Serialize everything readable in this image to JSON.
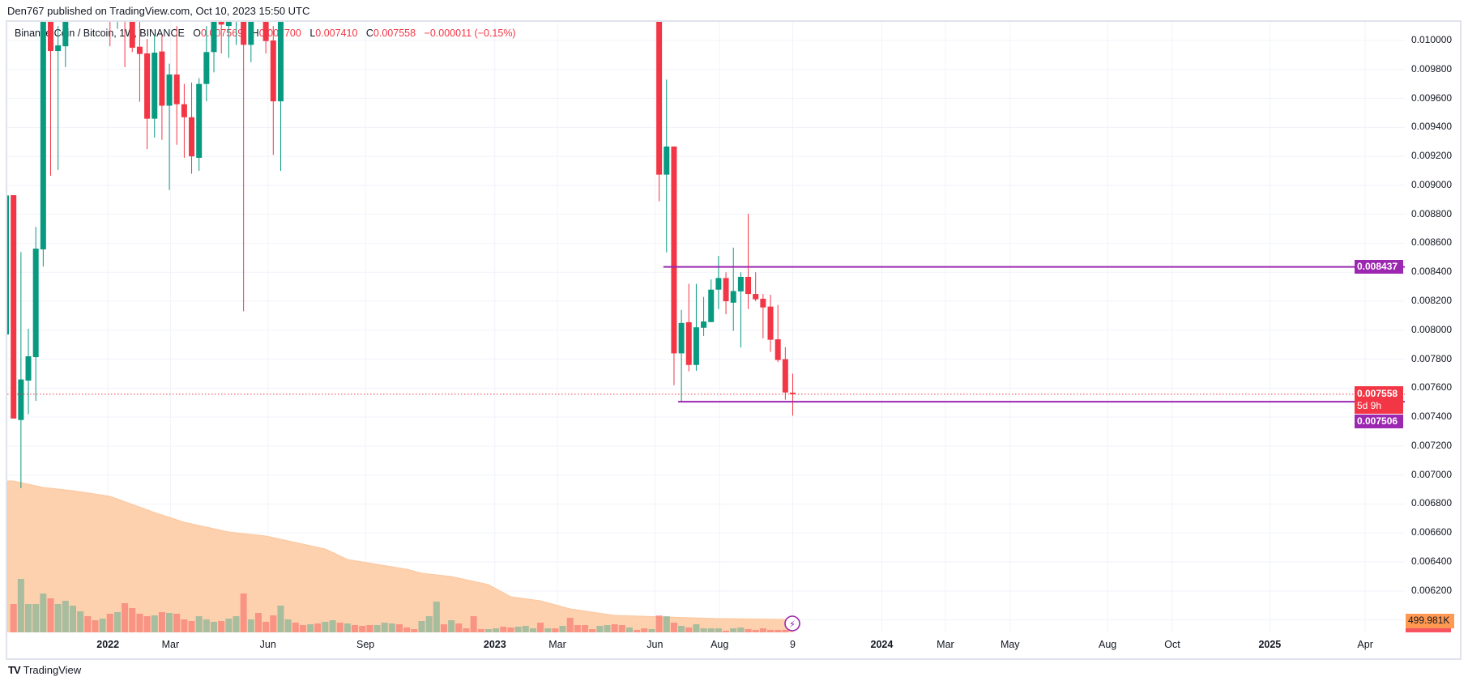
{
  "publisher_line": "Den767 published on TradingView.com, Oct 10, 2023 15:50 UTC",
  "legend": {
    "symbol": "Binance Coin / Bitcoin, 1W, BINANCE",
    "open_label": "O",
    "open": "0.007569",
    "high_label": "H",
    "high": "0.007700",
    "low_label": "L",
    "low": "0.007410",
    "close_label": "C",
    "close": "0.007558",
    "change": "−0.000011 (−0.15%)"
  },
  "colors": {
    "up": "#089981",
    "down": "#f23645",
    "level_line": "#9c27b0",
    "volume_ma": "#ff9850",
    "grid": "#f0f3fa"
  },
  "price_axis": {
    "ticks": [
      "0.010000",
      "0.009800",
      "0.009600",
      "0.009400",
      "0.009200",
      "0.009000",
      "0.008800",
      "0.008600",
      "0.008400",
      "0.008200",
      "0.008000",
      "0.007800",
      "0.007600",
      "0.007400",
      "0.007200",
      "0.007000",
      "0.006800",
      "0.006600",
      "0.006400",
      "0.006200"
    ]
  },
  "time_axis": {
    "labels": [
      {
        "t": "2022-01-01",
        "text": "2022",
        "year": true
      },
      {
        "t": "2022-03-01",
        "text": "Mar"
      },
      {
        "t": "2022-06-01",
        "text": "Jun"
      },
      {
        "t": "2022-09-01",
        "text": "Sep"
      },
      {
        "t": "2023-01-01",
        "text": "2023",
        "year": true
      },
      {
        "t": "2023-03-01",
        "text": "Mar"
      },
      {
        "t": "2023-06-01",
        "text": "Jun"
      },
      {
        "t": "2023-08-01",
        "text": "Aug"
      },
      {
        "t": "2023-10-09",
        "text": "9"
      },
      {
        "t": "2024-01-01",
        "text": "2024",
        "year": true
      },
      {
        "t": "2024-03-01",
        "text": "Mar"
      },
      {
        "t": "2024-05-01",
        "text": "May"
      },
      {
        "t": "2024-08-01",
        "text": "Aug"
      },
      {
        "t": "2024-10-01",
        "text": "Oct"
      },
      {
        "t": "2025-01-01",
        "text": "2025",
        "year": true
      },
      {
        "t": "2025-04-01",
        "text": "Apr"
      }
    ]
  },
  "levels": [
    {
      "price": 0.008437,
      "label": "0.008437",
      "from": "2023-06-12"
    },
    {
      "price": 0.007506,
      "label": "0.007506",
      "from": "2023-06-26"
    }
  ],
  "current_price": {
    "price": 0.007558,
    "label": "0.007558",
    "countdown": "5d 9h"
  },
  "volume_ma_label": "499.981K",
  "chart_data": {
    "type": "candlestick",
    "symbol": "Binance Coin / Bitcoin",
    "interval": "1W",
    "ylim": [
      0.006,
      0.0101
    ],
    "candles": [
      {
        "t": "2021-09-27",
        "o": 0.00797,
        "h": 0.00893,
        "l": 0.00797,
        "c": 0.00893
      },
      {
        "t": "2021-10-04",
        "o": 0.008932,
        "h": 0.008932,
        "l": 0.00739,
        "c": 0.00739
      },
      {
        "t": "2021-10-11",
        "o": 0.00738,
        "h": 0.00854,
        "l": 0.00691,
        "c": 0.00766
      },
      {
        "t": "2021-10-18",
        "o": 0.007652,
        "h": 0.00801,
        "l": 0.00742,
        "c": 0.00782
      },
      {
        "t": "2021-10-25",
        "o": 0.007814,
        "h": 0.008714,
        "l": 0.007512,
        "c": 0.008563
      },
      {
        "t": "2021-11-01",
        "o": 0.008558,
        "h": 0.011,
        "l": 0.00844,
        "c": 0.0105
      },
      {
        "t": "2021-11-08",
        "o": 0.0105,
        "h": 0.011,
        "l": 0.009066,
        "c": 0.009927
      },
      {
        "t": "2021-11-15",
        "o": 0.009927,
        "h": 0.0101,
        "l": 0.009106,
        "c": 0.009966
      },
      {
        "t": "2021-11-22",
        "o": 0.00996,
        "h": 0.0106,
        "l": 0.009816,
        "c": 0.0104
      },
      {
        "t": "2022-01-03",
        "o": 0.0106,
        "h": 0.0108,
        "l": 0.00996,
        "c": 0.0102
      },
      {
        "t": "2022-01-10",
        "o": 0.0102,
        "h": 0.0106,
        "l": 0.01008,
        "c": 0.0104
      },
      {
        "t": "2022-01-17",
        "o": 0.0105,
        "h": 0.0107,
        "l": 0.009816,
        "c": 0.0102
      },
      {
        "t": "2022-01-24",
        "o": 0.0103,
        "h": 0.0105,
        "l": 0.00992,
        "c": 0.00995
      },
      {
        "t": "2022-01-31",
        "o": 0.009957,
        "h": 0.0104,
        "l": 0.009577,
        "c": 0.009907
      },
      {
        "t": "2022-02-07",
        "o": 0.009911,
        "h": 0.01001,
        "l": 0.00925,
        "c": 0.00946
      },
      {
        "t": "2022-02-14",
        "o": 0.00946,
        "h": 0.01004,
        "l": 0.00933,
        "c": 0.009916
      },
      {
        "t": "2022-02-21",
        "o": 0.009924,
        "h": 0.01004,
        "l": 0.009314,
        "c": 0.00955
      },
      {
        "t": "2022-02-28",
        "o": 0.00955,
        "h": 0.00984,
        "l": 0.008968,
        "c": 0.009765
      },
      {
        "t": "2022-03-07",
        "o": 0.009765,
        "h": 0.0101,
        "l": 0.00928,
        "c": 0.00956
      },
      {
        "t": "2022-03-14",
        "o": 0.00956,
        "h": 0.0097,
        "l": 0.00919,
        "c": 0.00947
      },
      {
        "t": "2022-03-21",
        "o": 0.00947,
        "h": 0.00971,
        "l": 0.00908,
        "c": 0.0092
      },
      {
        "t": "2022-03-28",
        "o": 0.00919,
        "h": 0.00974,
        "l": 0.0091,
        "c": 0.0097
      },
      {
        "t": "2022-04-04",
        "o": 0.0097,
        "h": 0.0101,
        "l": 0.00958,
        "c": 0.00992
      },
      {
        "t": "2022-04-11",
        "o": 0.00992,
        "h": 0.0105,
        "l": 0.00978,
        "c": 0.0103
      },
      {
        "t": "2022-04-18",
        "o": 0.0102,
        "h": 0.0104,
        "l": 0.00991,
        "c": 0.01011
      },
      {
        "t": "2022-04-25",
        "o": 0.0101,
        "h": 0.0104,
        "l": 0.00988,
        "c": 0.0102
      },
      {
        "t": "2022-05-02",
        "o": 0.0104,
        "h": 0.0108,
        "l": 0.00997,
        "c": 0.0106
      },
      {
        "t": "2022-05-09",
        "o": 0.0106,
        "h": 0.0108,
        "l": 0.00813,
        "c": 0.00997
      },
      {
        "t": "2022-05-16",
        "o": 0.00997,
        "h": 0.0106,
        "l": 0.00985,
        "c": 0.0105
      },
      {
        "t": "2022-05-30",
        "o": 0.0105,
        "h": 0.0107,
        "l": 0.00991,
        "c": 0.009996
      },
      {
        "t": "2022-06-06",
        "o": 0.01,
        "h": 0.0101,
        "l": 0.00921,
        "c": 0.00958
      },
      {
        "t": "2022-06-13",
        "o": 0.00958,
        "h": 0.0106,
        "l": 0.0091,
        "c": 0.0103
      },
      {
        "t": "2023-06-05",
        "o": 0.0105,
        "h": 0.0106,
        "l": 0.00889,
        "c": 0.009074
      },
      {
        "t": "2023-06-12",
        "o": 0.009074,
        "h": 0.00973,
        "l": 0.008537,
        "c": 0.009268
      },
      {
        "t": "2023-06-19",
        "o": 0.009268,
        "h": 0.009268,
        "l": 0.00762,
        "c": 0.00784
      },
      {
        "t": "2023-06-26",
        "o": 0.00784,
        "h": 0.00814,
        "l": 0.007508,
        "c": 0.00805
      },
      {
        "t": "2023-07-03",
        "o": 0.008055,
        "h": 0.00832,
        "l": 0.007716,
        "c": 0.00776
      },
      {
        "t": "2023-07-10",
        "o": 0.00776,
        "h": 0.00832,
        "l": 0.00772,
        "c": 0.00802
      },
      {
        "t": "2023-07-17",
        "o": 0.008017,
        "h": 0.00823,
        "l": 0.00796,
        "c": 0.00806
      },
      {
        "t": "2023-07-24",
        "o": 0.008056,
        "h": 0.00835,
        "l": 0.008056,
        "c": 0.00828
      },
      {
        "t": "2023-07-31",
        "o": 0.00828,
        "h": 0.008513,
        "l": 0.008146,
        "c": 0.00836
      },
      {
        "t": "2023-08-07",
        "o": 0.00836,
        "h": 0.0084,
        "l": 0.00811,
        "c": 0.0082
      },
      {
        "t": "2023-08-14",
        "o": 0.00819,
        "h": 0.00857,
        "l": 0.007995,
        "c": 0.00827
      },
      {
        "t": "2023-08-21",
        "o": 0.008268,
        "h": 0.0084,
        "l": 0.00788,
        "c": 0.008368
      },
      {
        "t": "2023-08-28",
        "o": 0.008368,
        "h": 0.008804,
        "l": 0.008146,
        "c": 0.00825
      },
      {
        "t": "2023-09-04",
        "o": 0.00825,
        "h": 0.0084,
        "l": 0.0082,
        "c": 0.008213
      },
      {
        "t": "2023-09-11",
        "o": 0.008217,
        "h": 0.00825,
        "l": 0.007944,
        "c": 0.008157
      },
      {
        "t": "2023-09-18",
        "o": 0.008163,
        "h": 0.008245,
        "l": 0.00785,
        "c": 0.007934
      },
      {
        "t": "2023-09-25",
        "o": 0.007937,
        "h": 0.008174,
        "l": 0.00778,
        "c": 0.007794
      },
      {
        "t": "2023-10-02",
        "o": 0.0078,
        "h": 0.007883,
        "l": 0.00752,
        "c": 0.00757
      },
      {
        "t": "2023-10-09",
        "o": 0.007569,
        "h": 0.0077,
        "l": 0.00741,
        "c": 0.007558
      }
    ],
    "volume_unit": "K",
    "volume": [
      [
        "2021-10-04",
        1058,
        "down"
      ],
      [
        "2021-10-11",
        1970,
        "up"
      ],
      [
        "2021-10-18",
        1058,
        "up"
      ],
      [
        "2021-10-25",
        1058,
        "up"
      ],
      [
        "2021-11-01",
        1441,
        "up"
      ],
      [
        "2021-11-08",
        1264,
        "down"
      ],
      [
        "2021-11-15",
        1058,
        "up"
      ],
      [
        "2021-11-22",
        1176,
        "up"
      ],
      [
        "2021-11-29",
        1000,
        "up"
      ],
      [
        "2021-12-06",
        794,
        "up"
      ],
      [
        "2021-12-13",
        617,
        "down"
      ],
      [
        "2021-12-20",
        470,
        "down"
      ],
      [
        "2021-12-27",
        529,
        "up"
      ],
      [
        "2022-01-03",
        706,
        "down"
      ],
      [
        "2022-01-10",
        764,
        "up"
      ],
      [
        "2022-01-17",
        1088,
        "down"
      ],
      [
        "2022-01-24",
        911,
        "down"
      ],
      [
        "2022-01-31",
        706,
        "down"
      ],
      [
        "2022-02-07",
        617,
        "down"
      ],
      [
        "2022-02-14",
        647,
        "up"
      ],
      [
        "2022-02-21",
        764,
        "down"
      ],
      [
        "2022-02-28",
        735,
        "up"
      ],
      [
        "2022-03-07",
        706,
        "down"
      ],
      [
        "2022-03-14",
        500,
        "down"
      ],
      [
        "2022-03-21",
        441,
        "down"
      ],
      [
        "2022-03-28",
        617,
        "up"
      ],
      [
        "2022-04-04",
        500,
        "up"
      ],
      [
        "2022-04-11",
        412,
        "up"
      ],
      [
        "2022-04-18",
        441,
        "down"
      ],
      [
        "2022-04-25",
        529,
        "up"
      ],
      [
        "2022-05-02",
        617,
        "up"
      ],
      [
        "2022-05-09",
        1441,
        "down"
      ],
      [
        "2022-05-16",
        500,
        "up"
      ],
      [
        "2022-05-23",
        735,
        "down"
      ],
      [
        "2022-05-30",
        412,
        "down"
      ],
      [
        "2022-06-06",
        647,
        "down"
      ],
      [
        "2022-06-13",
        1000,
        "up"
      ],
      [
        "2022-06-20",
        500,
        "up"
      ],
      [
        "2022-06-27",
        382,
        "down"
      ],
      [
        "2022-07-04",
        294,
        "down"
      ],
      [
        "2022-07-11",
        323,
        "up"
      ],
      [
        "2022-07-18",
        353,
        "down"
      ],
      [
        "2022-07-25",
        412,
        "up"
      ],
      [
        "2022-08-01",
        470,
        "up"
      ],
      [
        "2022-08-08",
        382,
        "down"
      ],
      [
        "2022-08-15",
        353,
        "up"
      ],
      [
        "2022-08-22",
        294,
        "down"
      ],
      [
        "2022-08-29",
        265,
        "down"
      ],
      [
        "2022-09-05",
        294,
        "down"
      ],
      [
        "2022-09-12",
        294,
        "up"
      ],
      [
        "2022-09-19",
        382,
        "up"
      ],
      [
        "2022-09-26",
        353,
        "up"
      ],
      [
        "2022-10-03",
        323,
        "down"
      ],
      [
        "2022-10-10",
        206,
        "down"
      ],
      [
        "2022-10-17",
        147,
        "down"
      ],
      [
        "2022-10-24",
        441,
        "up"
      ],
      [
        "2022-10-31",
        617,
        "up"
      ],
      [
        "2022-11-07",
        1147,
        "up"
      ],
      [
        "2022-11-14",
        323,
        "down"
      ],
      [
        "2022-11-21",
        470,
        "up"
      ],
      [
        "2022-11-28",
        353,
        "down"
      ],
      [
        "2022-12-05",
        176,
        "down"
      ],
      [
        "2022-12-12",
        617,
        "down"
      ],
      [
        "2022-12-19",
        147,
        "down"
      ],
      [
        "2022-12-26",
        147,
        "up"
      ],
      [
        "2023-01-02",
        176,
        "up"
      ],
      [
        "2023-01-09",
        235,
        "down"
      ],
      [
        "2023-01-16",
        206,
        "down"
      ],
      [
        "2023-01-23",
        235,
        "up"
      ],
      [
        "2023-01-30",
        265,
        "up"
      ],
      [
        "2023-02-06",
        176,
        "up"
      ],
      [
        "2023-02-13",
        382,
        "down"
      ],
      [
        "2023-02-20",
        176,
        "up"
      ],
      [
        "2023-02-27",
        176,
        "down"
      ],
      [
        "2023-03-06",
        265,
        "up"
      ],
      [
        "2023-03-13",
        559,
        "down"
      ],
      [
        "2023-03-20",
        294,
        "down"
      ],
      [
        "2023-03-27",
        294,
        "down"
      ],
      [
        "2023-04-03",
        147,
        "down"
      ],
      [
        "2023-04-10",
        265,
        "up"
      ],
      [
        "2023-04-17",
        294,
        "up"
      ],
      [
        "2023-04-24",
        323,
        "down"
      ],
      [
        "2023-05-01",
        294,
        "down"
      ],
      [
        "2023-05-08",
        206,
        "up"
      ],
      [
        "2023-05-15",
        118,
        "down"
      ],
      [
        "2023-05-22",
        176,
        "down"
      ],
      [
        "2023-05-29",
        147,
        "up"
      ],
      [
        "2023-06-05",
        647,
        "down"
      ],
      [
        "2023-06-12",
        617,
        "up"
      ],
      [
        "2023-06-19",
        382,
        "down"
      ],
      [
        "2023-06-26",
        265,
        "up"
      ],
      [
        "2023-07-03",
        206,
        "down"
      ],
      [
        "2023-07-10",
        323,
        "up"
      ],
      [
        "2023-07-17",
        176,
        "up"
      ],
      [
        "2023-07-24",
        176,
        "up"
      ],
      [
        "2023-07-31",
        176,
        "up"
      ],
      [
        "2023-08-07",
        88,
        "down"
      ],
      [
        "2023-08-14",
        176,
        "up"
      ],
      [
        "2023-08-21",
        206,
        "up"
      ],
      [
        "2023-08-28",
        147,
        "down"
      ],
      [
        "2023-09-04",
        118,
        "down"
      ],
      [
        "2023-09-11",
        176,
        "down"
      ],
      [
        "2023-09-18",
        118,
        "down"
      ],
      [
        "2023-09-25",
        118,
        "down"
      ],
      [
        "2023-10-02",
        118,
        "down"
      ],
      [
        "2023-10-09",
        29,
        "down"
      ]
    ],
    "volume_ma": [
      [
        "2021-10-04",
        5527
      ],
      [
        "2021-11-01",
        5292
      ],
      [
        "2021-11-29",
        5174
      ],
      [
        "2022-01-03",
        4969
      ],
      [
        "2022-01-24",
        4675
      ],
      [
        "2022-02-14",
        4381
      ],
      [
        "2022-03-14",
        4028
      ],
      [
        "2022-04-25",
        3675
      ],
      [
        "2022-05-30",
        3528
      ],
      [
        "2022-07-25",
        3058
      ],
      [
        "2022-08-15",
        2675
      ],
      [
        "2022-10-10",
        2323
      ],
      [
        "2022-10-24",
        2176
      ],
      [
        "2022-11-21",
        2058
      ],
      [
        "2022-12-26",
        1764
      ],
      [
        "2023-01-16",
        1323
      ],
      [
        "2023-02-13",
        1176
      ],
      [
        "2023-03-13",
        882
      ],
      [
        "2023-04-24",
        647
      ],
      [
        "2023-06-12",
        588
      ],
      [
        "2023-07-31",
        529
      ],
      [
        "2023-10-09",
        500
      ]
    ]
  },
  "footer": {
    "logo_text": "TradingView"
  }
}
